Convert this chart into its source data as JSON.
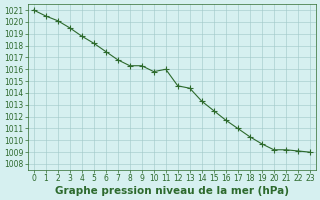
{
  "x": [
    0,
    1,
    2,
    3,
    4,
    5,
    6,
    7,
    8,
    9,
    10,
    11,
    12,
    13,
    14,
    15,
    16,
    17,
    18,
    19,
    20,
    21,
    22,
    23
  ],
  "y": [
    1021.0,
    1020.5,
    1020.1,
    1019.5,
    1018.8,
    1018.2,
    1017.5,
    1016.8,
    1016.3,
    1016.3,
    1015.8,
    1016.0,
    1014.6,
    1014.4,
    1013.3,
    1012.5,
    1011.7,
    1011.0,
    1010.3,
    1009.7,
    1009.2,
    1009.2,
    1009.1,
    1009.0
  ],
  "title": "Graphe pression niveau de la mer (hPa)",
  "xlim": [
    -0.5,
    23.5
  ],
  "ylim": [
    1007.5,
    1021.5
  ],
  "yticks": [
    1008,
    1009,
    1010,
    1011,
    1012,
    1013,
    1014,
    1015,
    1016,
    1017,
    1018,
    1019,
    1020,
    1021
  ],
  "xticks": [
    0,
    1,
    2,
    3,
    4,
    5,
    6,
    7,
    8,
    9,
    10,
    11,
    12,
    13,
    14,
    15,
    16,
    17,
    18,
    19,
    20,
    21,
    22,
    23
  ],
  "line_color": "#2d6a2d",
  "marker_color": "#2d6a2d",
  "bg_color": "#d6f0f0",
  "grid_color": "#a0c8c8",
  "title_color": "#2d6a2d",
  "tick_color": "#2d6a2d",
  "title_fontsize": 7.5,
  "tick_fontsize": 5.5
}
